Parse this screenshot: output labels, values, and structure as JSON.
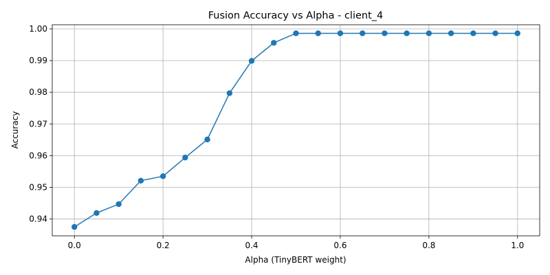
{
  "chart_data": {
    "type": "line",
    "title": "Fusion Accuracy vs Alpha - client_4",
    "xlabel": "Alpha (TinyBERT weight)",
    "ylabel": "Accuracy",
    "xlim": [
      -0.05,
      1.05
    ],
    "ylim": [
      0.9347,
      1.0013
    ],
    "xticks": [
      "0.0",
      "0.2",
      "0.4",
      "0.6",
      "0.8",
      "1.0"
    ],
    "xtick_values": [
      0.0,
      0.2,
      0.4,
      0.6,
      0.8,
      1.0
    ],
    "yticks": [
      "0.94",
      "0.95",
      "0.96",
      "0.97",
      "0.98",
      "0.99",
      "1.00"
    ],
    "ytick_values": [
      0.94,
      0.95,
      0.96,
      0.97,
      0.98,
      0.99,
      1.0
    ],
    "grid": true,
    "color": "#1f77b4",
    "marker": "circle",
    "x": [
      0.0,
      0.05,
      0.1,
      0.15,
      0.2,
      0.25,
      0.3,
      0.35,
      0.4,
      0.45,
      0.5,
      0.55,
      0.6,
      0.65,
      0.7,
      0.75,
      0.8,
      0.85,
      0.9,
      0.95,
      1.0
    ],
    "y": [
      0.9375,
      0.9419,
      0.9447,
      0.9521,
      0.9535,
      0.9594,
      0.9651,
      0.9797,
      0.9899,
      0.9956,
      0.9986,
      0.9986,
      0.9986,
      0.9986,
      0.9986,
      0.9986,
      0.9986,
      0.9986,
      0.9986,
      0.9986,
      0.9986
    ]
  }
}
